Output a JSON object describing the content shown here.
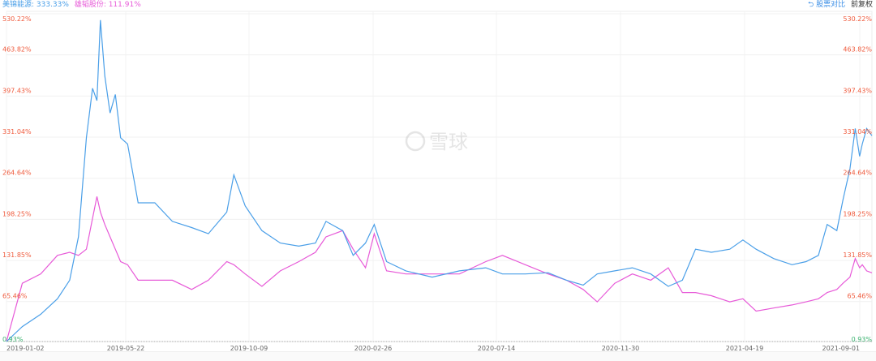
{
  "legend": {
    "series1": {
      "label": "美锦能源: 333.33%",
      "color": "#4a9fe8"
    },
    "series2": {
      "label": "雄韬股份: 111.91%",
      "color": "#e75ad8"
    }
  },
  "controls": {
    "compare_label": "股票对比",
    "adjust_label": "前复权"
  },
  "watermark": "雪球",
  "chart_data": {
    "type": "line",
    "title": "",
    "xlabel": "",
    "ylabel": "",
    "ylim": [
      0.93,
      530.22
    ],
    "y_ticks": [
      "530.22%",
      "463.82%",
      "397.43%",
      "331.04%",
      "264.64%",
      "198.25%",
      "131.85%",
      "65.46%",
      "0.93%"
    ],
    "y_tick_values": [
      530.22,
      463.82,
      397.43,
      331.04,
      264.64,
      198.25,
      131.85,
      65.46,
      0.93
    ],
    "x_ticks": [
      "2019-01-02",
      "2019-05-22",
      "2019-10-09",
      "2020-02-26",
      "2020-07-14",
      "2020-11-30",
      "2021-04-19",
      "2021-09-01"
    ],
    "grid": true,
    "x": [
      "2019-01-02",
      "2019-01-20",
      "2019-02-10",
      "2019-03-01",
      "2019-03-15",
      "2019-03-25",
      "2019-04-03",
      "2019-04-10",
      "2019-04-15",
      "2019-04-19",
      "2019-04-24",
      "2019-04-30",
      "2019-05-06",
      "2019-05-12",
      "2019-05-20",
      "2019-06-01",
      "2019-06-20",
      "2019-07-10",
      "2019-08-01",
      "2019-08-20",
      "2019-09-10",
      "2019-09-18",
      "2019-10-01",
      "2019-10-20",
      "2019-11-10",
      "2019-12-01",
      "2019-12-20",
      "2020-01-01",
      "2020-01-20",
      "2020-02-01",
      "2020-02-15",
      "2020-02-25",
      "2020-03-10",
      "2020-04-01",
      "2020-05-01",
      "2020-06-01",
      "2020-07-01",
      "2020-07-20",
      "2020-08-15",
      "2020-09-10",
      "2020-10-01",
      "2020-10-20",
      "2020-11-05",
      "2020-11-25",
      "2020-12-15",
      "2021-01-05",
      "2021-01-25",
      "2021-02-10",
      "2021-02-25",
      "2021-03-15",
      "2021-04-05",
      "2021-04-20",
      "2021-05-05",
      "2021-05-25",
      "2021-06-15",
      "2021-07-01",
      "2021-07-15",
      "2021-07-25",
      "2021-08-05",
      "2021-08-12",
      "2021-08-20",
      "2021-08-26",
      "2021-08-31",
      "2021-09-03",
      "2021-09-08",
      "2021-09-14"
    ],
    "series": [
      {
        "name": "美锦能源",
        "color": "#4a9fe8",
        "values": [
          0.93,
          25,
          45,
          70,
          100,
          170,
          330,
          410,
          390,
          520,
          430,
          370,
          400,
          330,
          320,
          225,
          225,
          195,
          185,
          175,
          210,
          270,
          220,
          180,
          160,
          155,
          160,
          195,
          180,
          140,
          160,
          190,
          130,
          115,
          105,
          115,
          120,
          110,
          110,
          112,
          100,
          92,
          110,
          115,
          120,
          110,
          90,
          100,
          150,
          145,
          150,
          165,
          150,
          135,
          125,
          130,
          140,
          190,
          180,
          230,
          280,
          345,
          300,
          320,
          345,
          333.33
        ]
      },
      {
        "name": "雄韬股份",
        "color": "#e75ad8",
        "values": [
          0.93,
          95,
          110,
          140,
          145,
          140,
          150,
          200,
          235,
          210,
          190,
          170,
          150,
          130,
          125,
          100,
          100,
          100,
          85,
          100,
          130,
          125,
          110,
          90,
          115,
          130,
          145,
          170,
          180,
          150,
          120,
          175,
          115,
          110,
          110,
          110,
          130,
          140,
          125,
          110,
          100,
          85,
          65,
          95,
          110,
          100,
          120,
          80,
          80,
          75,
          65,
          70,
          50,
          55,
          60,
          65,
          70,
          80,
          85,
          95,
          105,
          135,
          120,
          125,
          115,
          111.91
        ]
      }
    ]
  }
}
